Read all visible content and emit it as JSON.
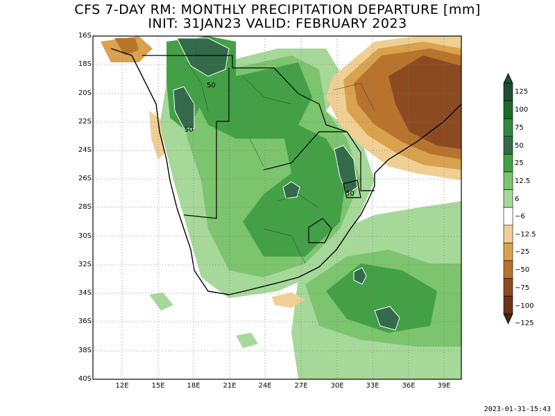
{
  "title_line1": "CFS 7-DAY RM: MONTHLY PRECIPITATION DEPARTURE [mm]",
  "title_line2": "INIT: 31JAN23 VALID: FEBRUARY 2023",
  "timestamp": "2023-01-31-15:43",
  "map": {
    "lon_range": [
      10,
      40
    ],
    "lat_range": [
      -40,
      -16
    ],
    "lat_ticks": [
      "16S",
      "18S",
      "20S",
      "22S",
      "24S",
      "26S",
      "28S",
      "30S",
      "32S",
      "34S",
      "36S",
      "38S",
      "40S"
    ],
    "lon_ticks": [
      "12E",
      "15E",
      "18E",
      "21E",
      "24E",
      "27E",
      "30E",
      "33E",
      "36E",
      "39E"
    ],
    "gridlines": true,
    "contour_labels": [
      "50",
      "50",
      "50"
    ]
  },
  "colorbar": {
    "labels": [
      "125",
      "100",
      "75",
      "50",
      "25",
      "12.5",
      "6",
      "−6",
      "−12.5",
      "−25",
      "−50",
      "−75",
      "−100",
      "−125"
    ],
    "colors": [
      "#1f4d34",
      "#1a6b2a",
      "#2e8b3a",
      "#336b4a",
      "#43a046",
      "#7cc46e",
      "#a6d89a",
      "#ffffff",
      "#f0cf94",
      "#d9a24e",
      "#b8742c",
      "#8c4a22",
      "#6e3318",
      "#4a2410"
    ]
  }
}
